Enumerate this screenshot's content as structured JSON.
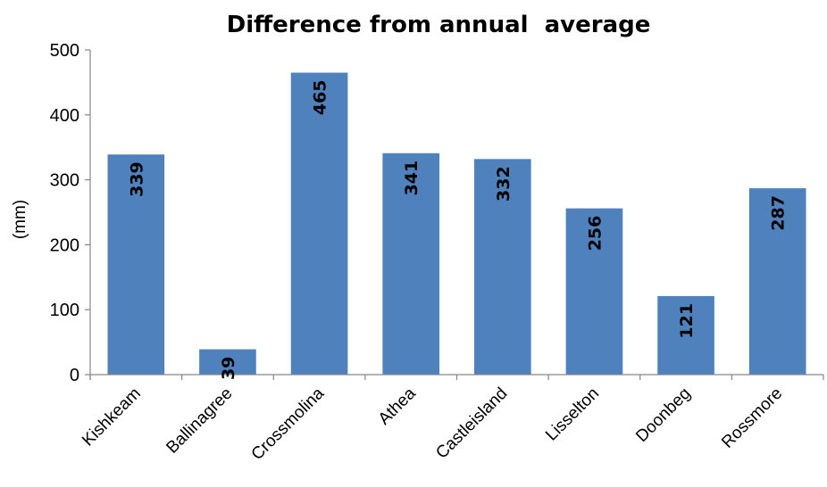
{
  "chart_data": {
    "type": "bar",
    "title": "Difference from annual  average",
    "xlabel": "",
    "ylabel": "(mm)",
    "categories": [
      "Kishkeam",
      "Ballinagree",
      "Crossmolina",
      "Athea",
      "Castleisland",
      "Lisselton",
      "Doonbeg",
      "Rossmore"
    ],
    "values": [
      339,
      39,
      465,
      341,
      332,
      256,
      121,
      287
    ],
    "data_labels": [
      "339",
      "39",
      "465",
      "341",
      "332",
      "256",
      "121",
      "287"
    ],
    "ylim": [
      0,
      500
    ],
    "yticks": [
      "0",
      "100",
      "200",
      "300",
      "400",
      "500"
    ],
    "grid": false,
    "legend": "none",
    "bar_color": "#4f81bd",
    "axis_color": "#868686"
  }
}
